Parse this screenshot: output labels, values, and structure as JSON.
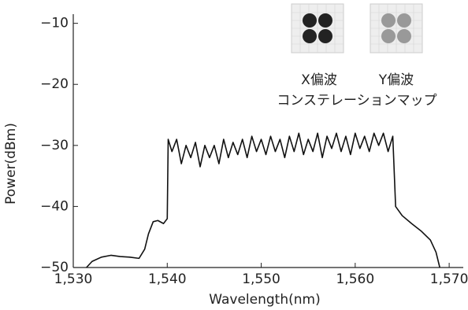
{
  "chart_data": {
    "type": "line",
    "xlabel": "Wavelength(nm)",
    "ylabel": "Power(dBm)",
    "annotations": [
      "X偏波",
      "Y偏波",
      "コンステレーションマップ"
    ],
    "xlim": [
      1530,
      1571.5
    ],
    "ylim": [
      -50,
      -8.5
    ],
    "xticks": [
      {
        "value": 1530,
        "label": "1,530"
      },
      {
        "value": 1540,
        "label": "1,540"
      },
      {
        "value": 1550,
        "label": "1,550"
      },
      {
        "value": 1560,
        "label": "1,560"
      },
      {
        "value": 1570,
        "label": "1,570"
      }
    ],
    "yticks": [
      {
        "value": -10,
        "label": "−10"
      },
      {
        "value": -20,
        "label": "−20"
      },
      {
        "value": -30,
        "label": "−30"
      },
      {
        "value": -40,
        "label": "−40"
      },
      {
        "value": -50,
        "label": "−50"
      }
    ],
    "series": [
      {
        "color": "#111111",
        "x": [
          1531.4,
          1532,
          1533,
          1534,
          1535,
          1536,
          1537,
          1537.6,
          1538,
          1538.5,
          1539,
          1539.6,
          1540,
          1540.1,
          1540.5,
          1541,
          1541.5,
          1542,
          1542.5,
          1543,
          1543.5,
          1544,
          1544.5,
          1545,
          1545.5,
          1546,
          1546.5,
          1547,
          1547.5,
          1548,
          1548.5,
          1549,
          1549.5,
          1550,
          1550.5,
          1551,
          1551.5,
          1552,
          1552.5,
          1553,
          1553.5,
          1554,
          1554.5,
          1555,
          1555.5,
          1556,
          1556.5,
          1557,
          1557.5,
          1558,
          1558.5,
          1559,
          1559.5,
          1560,
          1560.5,
          1561,
          1561.5,
          1562,
          1562.5,
          1563,
          1563.5,
          1564,
          1564.3,
          1565,
          1566,
          1567,
          1568,
          1568.6,
          1569
        ],
        "values": [
          -50,
          -49,
          -48.3,
          -48,
          -48.2,
          -48.3,
          -48.5,
          -47,
          -44.5,
          -42.5,
          -42.3,
          -42.8,
          -42,
          -29,
          -31,
          -29,
          -33,
          -30,
          -32,
          -29.5,
          -33.5,
          -30,
          -32,
          -30,
          -33,
          -29,
          -32,
          -29.5,
          -31.5,
          -29,
          -32,
          -28.5,
          -31,
          -29,
          -31.5,
          -28.5,
          -31,
          -29,
          -32,
          -28.5,
          -31,
          -28,
          -31.5,
          -29,
          -31,
          -28,
          -32,
          -28.5,
          -30.5,
          -28,
          -31,
          -28.5,
          -31.5,
          -28,
          -30.5,
          -28.5,
          -31,
          -28,
          -30,
          -28,
          -31,
          -28.5,
          -40,
          -41.5,
          -42.8,
          -44,
          -45.5,
          -47.5,
          -50
        ]
      }
    ]
  }
}
